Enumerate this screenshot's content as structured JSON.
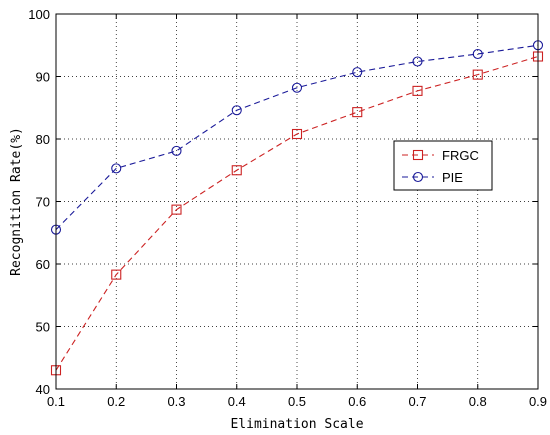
{
  "chart_data": {
    "type": "line",
    "xlabel": "Elimination Scale",
    "ylabel": "Recognition Rate(%)",
    "xlim": [
      0.1,
      0.9
    ],
    "ylim": [
      40,
      100
    ],
    "xticks": [
      "0.1",
      "0.2",
      "0.3",
      "0.4",
      "0.5",
      "0.6",
      "0.7",
      "0.8",
      "0.9"
    ],
    "yticks": [
      "40",
      "50",
      "60",
      "70",
      "80",
      "90",
      "100"
    ],
    "grid": true,
    "legend_position": "right",
    "x": [
      0.1,
      0.2,
      0.3,
      0.4,
      0.5,
      0.6,
      0.7,
      0.8,
      0.9
    ],
    "series": [
      {
        "name": "FRGC",
        "values": [
          43.0,
          58.3,
          68.7,
          75.0,
          80.8,
          84.3,
          87.7,
          90.3,
          93.2
        ],
        "color": "#cc2222",
        "marker": "square",
        "line": "dashed"
      },
      {
        "name": "PIE",
        "values": [
          65.5,
          75.3,
          78.1,
          84.6,
          88.2,
          90.7,
          92.4,
          93.6,
          95.0
        ],
        "color": "#1a1a99",
        "marker": "circle",
        "line": "dashed"
      }
    ]
  }
}
